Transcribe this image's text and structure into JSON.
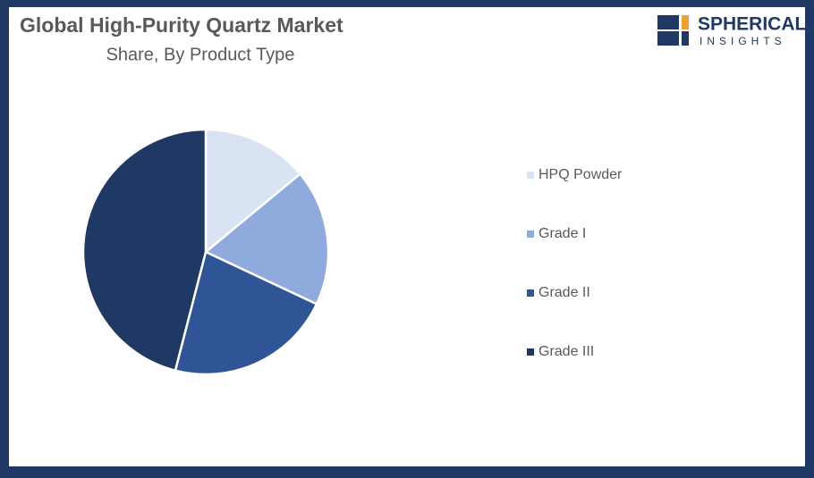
{
  "chart_data": {
    "type": "pie",
    "title": "Global High-Purity Quartz Market",
    "subtitle": "Share, By Product Type",
    "categories": [
      "HPQ Powder",
      "Grade I",
      "Grade II",
      "Grade III"
    ],
    "values": [
      14,
      18,
      22,
      46
    ],
    "colors": [
      "#dae3f3",
      "#8faadc",
      "#2f5597",
      "#203864"
    ],
    "legend": "right"
  },
  "logo": {
    "line1": "SPHERICAL",
    "line2": "INSIGHTS"
  }
}
